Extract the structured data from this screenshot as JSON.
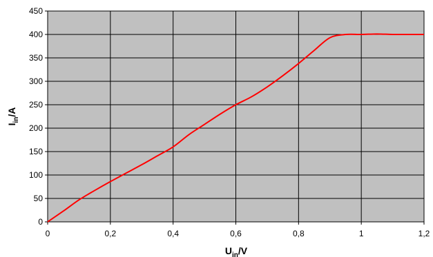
{
  "chart_data": {
    "type": "line",
    "title": "",
    "xlabel": {
      "main": "U",
      "sub": "in",
      "unit": "/V"
    },
    "ylabel": {
      "main": "I",
      "sub": "in",
      "unit": "/A"
    },
    "xlim": [
      0,
      1.2
    ],
    "ylim": [
      0,
      450
    ],
    "x_ticks": [
      "0",
      "0,2",
      "0,4",
      "0,6",
      "0,8",
      "1",
      "1,2"
    ],
    "y_ticks": [
      "0",
      "50",
      "100",
      "150",
      "200",
      "250",
      "300",
      "350",
      "400",
      "450"
    ],
    "grid": true,
    "legend": "none",
    "colors": {
      "plot_background": "#c0c0c0",
      "line": "#ff0000",
      "grid": "#000000"
    },
    "series": [
      {
        "x": [
          0,
          0.05,
          0.1,
          0.15,
          0.2,
          0.25,
          0.3,
          0.35,
          0.4,
          0.45,
          0.5,
          0.55,
          0.6,
          0.65,
          0.7,
          0.75,
          0.8,
          0.85,
          0.9,
          0.95,
          1.0,
          1.05,
          1.1,
          1.15,
          1.2
        ],
        "y": [
          0,
          23,
          47,
          67,
          86,
          104,
          122,
          141,
          160,
          186,
          208,
          230,
          250,
          267,
          288,
          312,
          338,
          366,
          393,
          400,
          400,
          401,
          400,
          400,
          400
        ]
      }
    ]
  }
}
